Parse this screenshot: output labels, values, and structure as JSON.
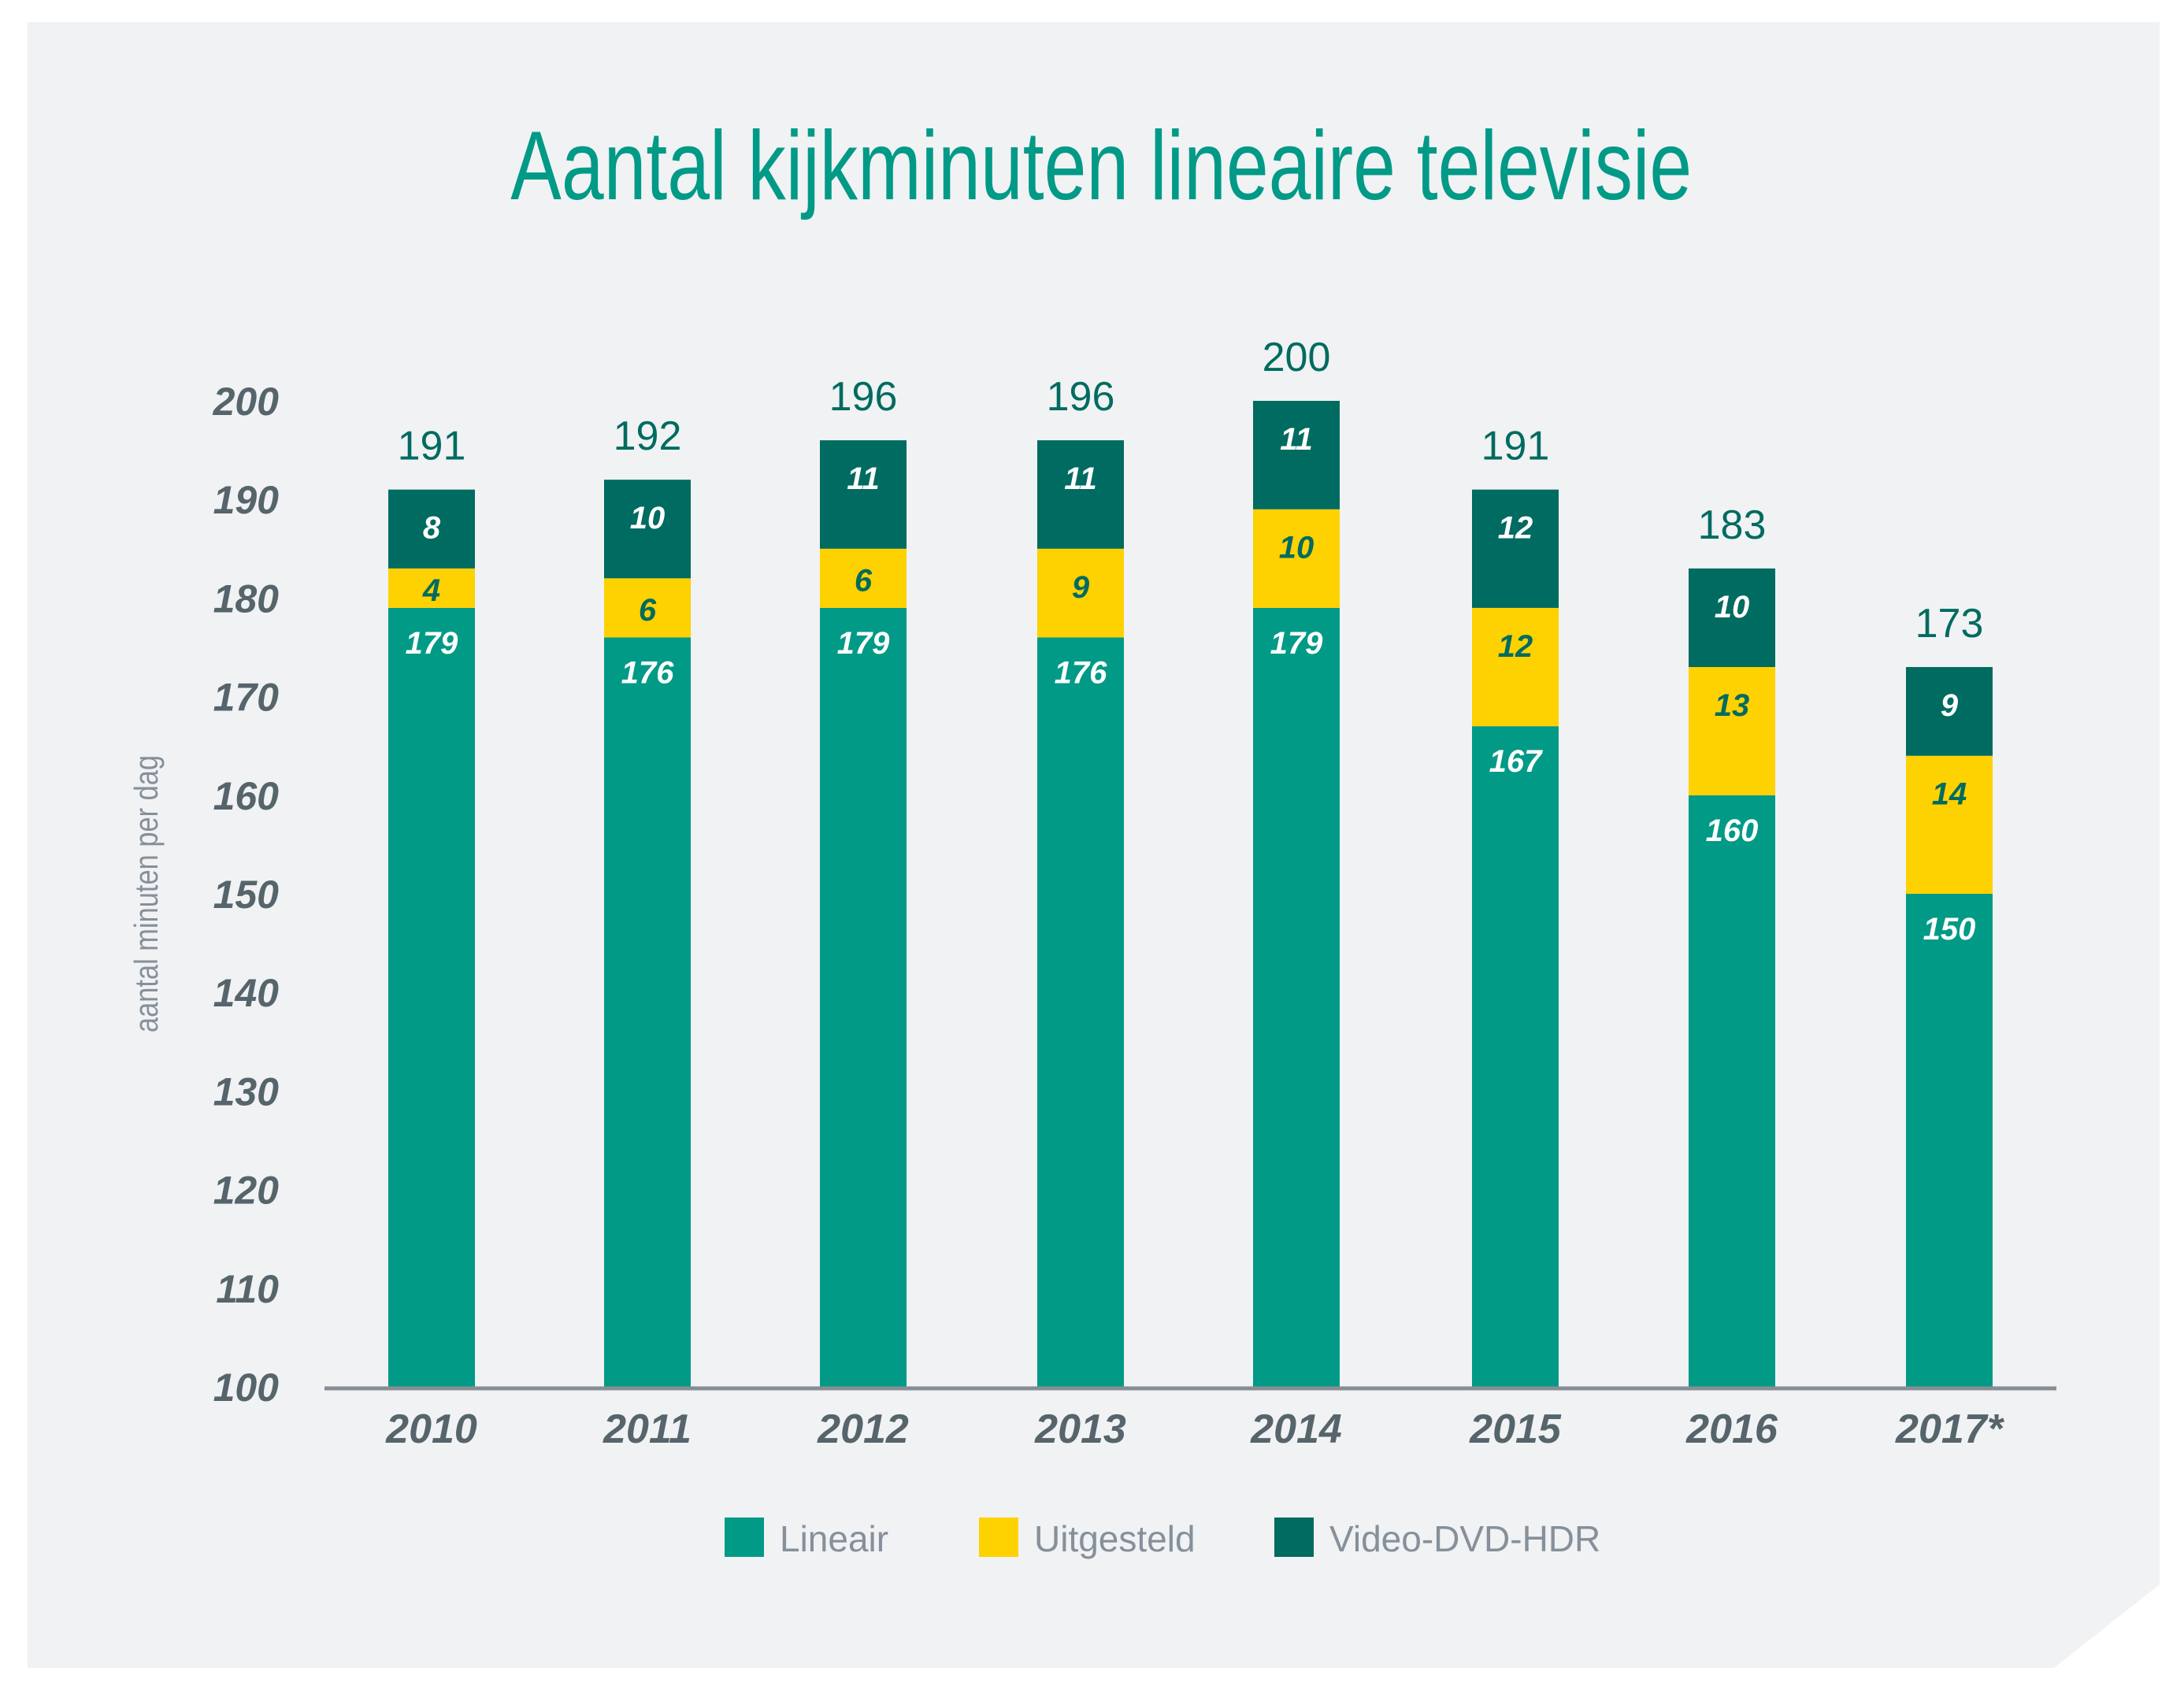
{
  "colors": {
    "background": "#f0f2f4",
    "title": "#009a87",
    "lineair": "#009a87",
    "uitgesteld": "#fed100",
    "video_dvd_hdr": "#006b60",
    "axis_line": "#878d94",
    "tick_text": "#56646b",
    "axis_title_text": "#86909a",
    "total_text": "#006b60",
    "seg_text_light": "#ffffff",
    "seg_text_dark": "#006b60"
  },
  "chart_data": {
    "type": "bar",
    "stacked": true,
    "title": "Aantal kijkminuten lineaire televisie",
    "xlabel": "",
    "ylabel": "aantal minuten per dag",
    "ylim": [
      100,
      200
    ],
    "yticks": [
      100,
      110,
      120,
      130,
      140,
      150,
      160,
      170,
      180,
      190,
      200
    ],
    "grid": false,
    "legend_position": "bottom-center",
    "categories": [
      "2010",
      "2011",
      "2012",
      "2013",
      "2014",
      "2015",
      "2016",
      "2017*"
    ],
    "series": [
      {
        "name": "Lineair",
        "color_key": "lineair",
        "label_color_key": "seg_text_light",
        "values": [
          179,
          176,
          179,
          176,
          179,
          167,
          160,
          150
        ]
      },
      {
        "name": "Uitgesteld",
        "color_key": "uitgesteld",
        "label_color_key": "seg_text_dark",
        "values": [
          4,
          6,
          6,
          9,
          10,
          12,
          13,
          14
        ]
      },
      {
        "name": "Video-DVD-HDR",
        "color_key": "video_dvd_hdr",
        "label_color_key": "seg_text_light",
        "values": [
          8,
          10,
          11,
          11,
          11,
          12,
          10,
          9
        ]
      }
    ],
    "totals": [
      191,
      192,
      196,
      196,
      200,
      191,
      183,
      173
    ]
  }
}
